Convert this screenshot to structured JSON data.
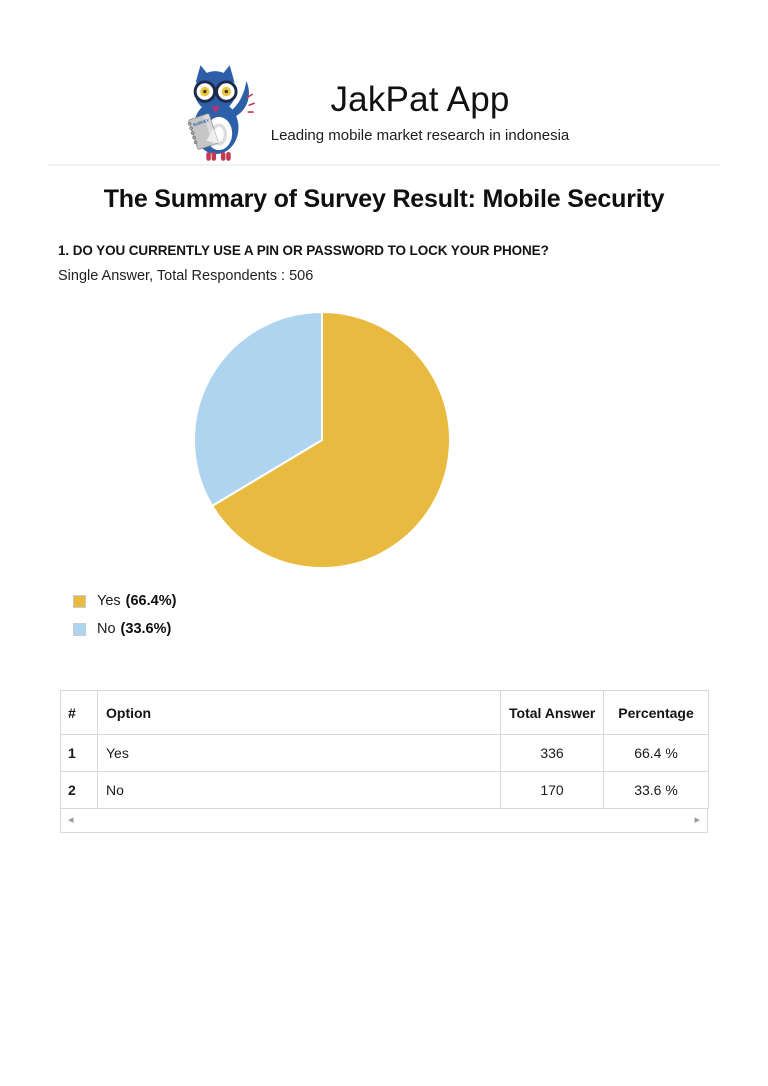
{
  "header": {
    "app_title": "JakPat App",
    "tagline": "Leading mobile market research in indonesia",
    "logo_pad_text": "SURVEY"
  },
  "page_title": "The Summary of Survey Result: Mobile Security",
  "question": {
    "title": "1. DO YOU CURRENTLY USE A PIN OR PASSWORD TO LOCK YOUR PHONE?",
    "meta": "Single Answer, Total Respondents : 506"
  },
  "chart_data": {
    "type": "pie",
    "title": "",
    "categories": [
      "Yes",
      "No"
    ],
    "values": [
      66.4,
      33.6
    ],
    "counts": [
      336,
      170
    ],
    "total_respondents": 506,
    "colors": [
      "#E8BA3F",
      "#AED4F0"
    ],
    "slice_stroke": "#FFFFFF",
    "start_angle": "12-oclock-clockwise",
    "legend_position": "below-left",
    "legend": [
      {
        "label": "Yes",
        "value": "(66.4%)"
      },
      {
        "label": "No",
        "value": "(33.6%)"
      }
    ]
  },
  "table": {
    "headers": {
      "num": "#",
      "option": "Option",
      "total": "Total Answer",
      "pct": "Percentage"
    },
    "rows": [
      {
        "num": "1",
        "option": "Yes",
        "total": "336",
        "pct": "66.4 %"
      },
      {
        "num": "2",
        "option": "No",
        "total": "170",
        "pct": "33.6 %"
      }
    ],
    "scrollbar": {
      "left_arrow": "◂",
      "right_arrow": "▸"
    }
  }
}
